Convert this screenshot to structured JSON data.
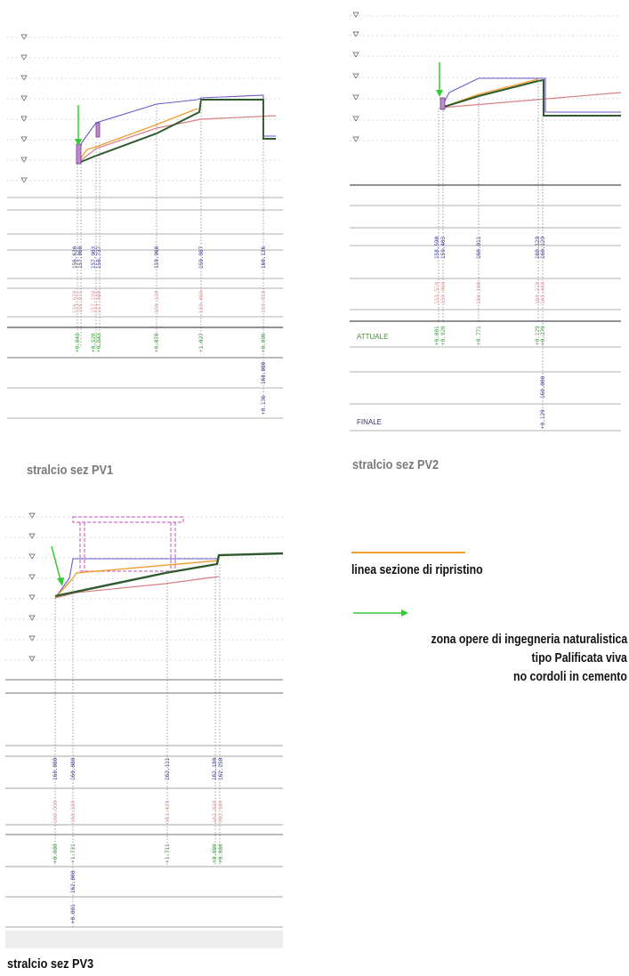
{
  "captions": {
    "pv1": "stralcio sez PV1",
    "pv2": "stralcio sez PV2",
    "pv3": "stralcio sez PV3"
  },
  "legend": {
    "orange_line_label": "linea sezione di ripristino",
    "green_arrow_line1": "zona opere di ingegneria naturalistica",
    "green_arrow_line2": "tipo Palificata viva",
    "green_arrow_line3": "no cordoli in cemento"
  },
  "colors": {
    "orange": "#f0a030",
    "green_arrow": "#33cc33",
    "dark_green": "#2e5a2e",
    "purple": "#6a5acd",
    "pink": "#d98080",
    "label_blue": "#3a3a99",
    "label_green": "#3aa03a",
    "label_pink": "#e49a9a"
  },
  "pv1": {
    "elev_labels": [
      "156.630",
      "157.060",
      "157.903",
      "158.737",
      "159.960",
      "159.987",
      "160.136"
    ],
    "pink_labels": [
      "156.620",
      "156.815",
      "157.330",
      "157.480",
      "159.120",
      "159.460",
      "159.950"
    ],
    "green_labels": [
      "+0.843",
      "+0.520",
      "+0.843",
      "+0.070",
      "+1.027",
      "+0.096"
    ],
    "extra_labels": [
      "160.000",
      "+0.136"
    ]
  },
  "pv2": {
    "row_label_top": "ATTUALE",
    "row_label_bottom": "FINALE",
    "elev_labels": [
      "158.590",
      "159.403",
      "160.011",
      "160.129",
      "160.129"
    ],
    "pink_labels": [
      "159.510",
      "159.960",
      "160.100",
      "160.210",
      "160.400"
    ],
    "green_labels": [
      "+0.001",
      "+0.920",
      "+0.771",
      "+0.129",
      "+0.270"
    ],
    "extra_labels": [
      "160.000",
      "+0.129"
    ]
  },
  "pv3": {
    "elev_labels": [
      "160.080",
      "160.080",
      "162.111",
      "162.180",
      "162.250"
    ],
    "pink_labels": [
      "160.350",
      "160.580",
      "161.420",
      "162.020",
      "162.180"
    ],
    "green_labels": [
      "+0.080",
      "+1.731",
      "+1.711",
      "+0.080",
      "+0.080"
    ],
    "extra_labels": [
      "162.000",
      "+0.081"
    ]
  }
}
